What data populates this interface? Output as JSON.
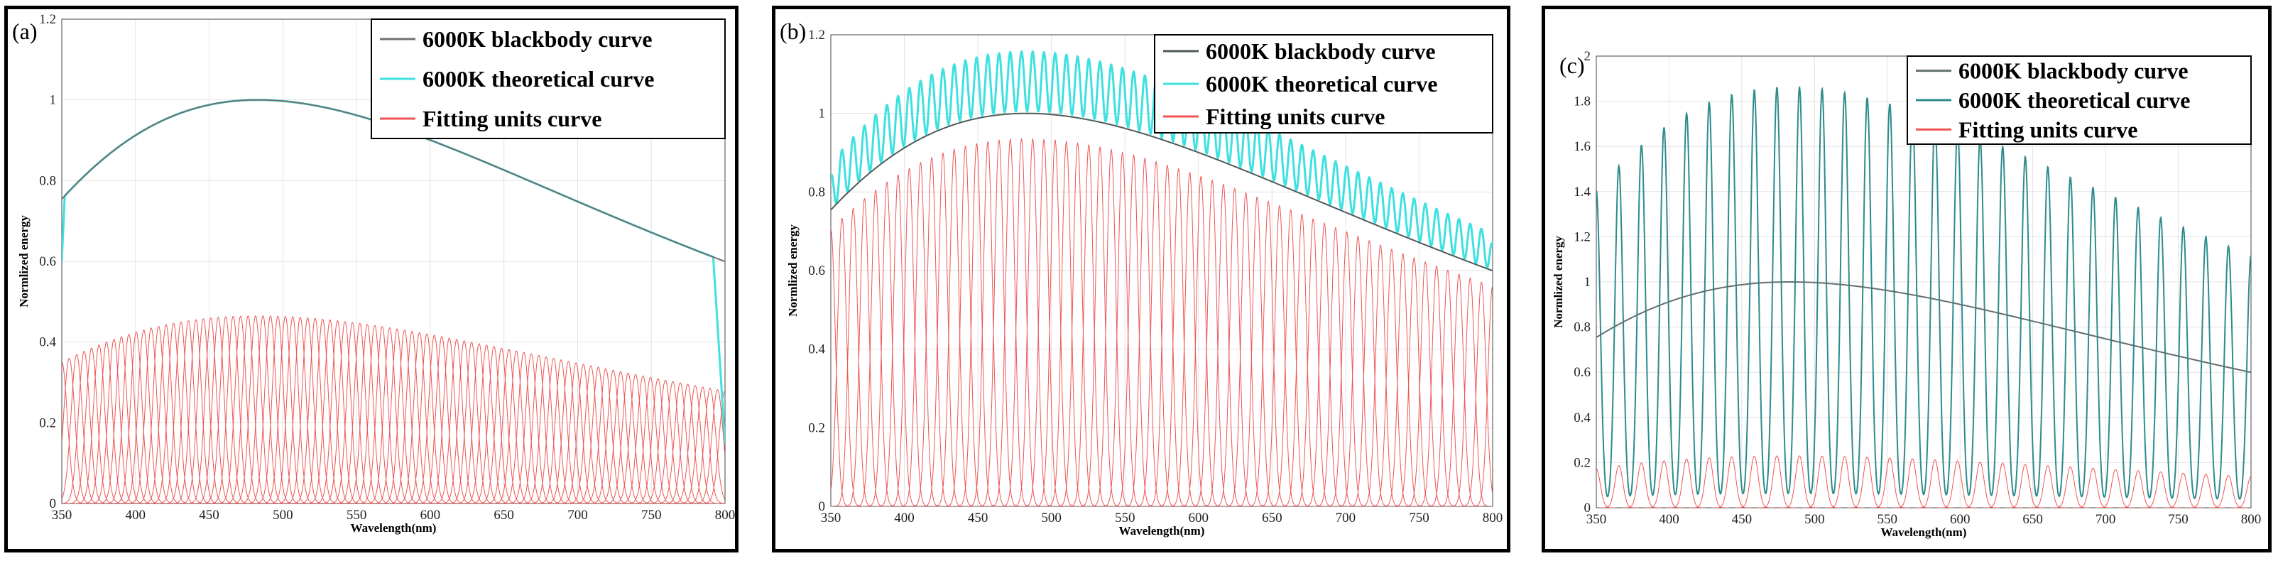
{
  "chart_data": [
    {
      "type": "line",
      "panel_label": "(a)",
      "xlabel": "Wavelength(nm)",
      "ylabel": "Normlized energy",
      "xlim": [
        350,
        800
      ],
      "ylim": [
        0,
        1.2
      ],
      "xticks": [
        "350",
        "400",
        "450",
        "500",
        "550",
        "600",
        "650",
        "700",
        "750",
        "800"
      ],
      "yticks": [
        "0",
        "0.2",
        "0.4",
        "0.6",
        "0.8",
        "1",
        "1.2"
      ],
      "grid": true,
      "legend_position": "top-right",
      "units": {
        "count": 90,
        "start": 350,
        "end": 800,
        "fwhm": 9,
        "amplitude_scale": 0.465
      },
      "theoretical_rise_start": 0.6,
      "theoretical_fall_end": 0.15,
      "series": [
        {
          "name": "6000K blackbody curve",
          "color": "#707070",
          "kind": "blackbody"
        },
        {
          "name": "6000K theoretical curve",
          "color": "#3ee0e0",
          "kind": "theoretical"
        },
        {
          "name": "Fitting units curve",
          "color": "#ef5454",
          "kind": "units"
        }
      ]
    },
    {
      "type": "line",
      "panel_label": "(b)",
      "xlabel": "Wavelength(nm)",
      "ylabel": "Normlized energy",
      "xlim": [
        350,
        800
      ],
      "ylim": [
        0,
        1.2
      ],
      "xticks": [
        "350",
        "400",
        "450",
        "500",
        "550",
        "600",
        "650",
        "700",
        "750",
        "800"
      ],
      "yticks": [
        "0",
        "0.2",
        "0.4",
        "0.6",
        "0.8",
        "1",
        "1.2"
      ],
      "grid": true,
      "legend_position": "top-right",
      "units": {
        "count": 60,
        "start": 350,
        "end": 800,
        "fwhm": 7.4,
        "amplitude_scale": 0.935
      },
      "series": [
        {
          "name": "6000K blackbody curve",
          "color": "#505a5a",
          "kind": "blackbody"
        },
        {
          "name": "6000K theoretical curve",
          "color": "#3ee0e0",
          "kind": "theoretical"
        },
        {
          "name": "Fitting units curve",
          "color": "#ef5454",
          "kind": "units"
        }
      ]
    },
    {
      "type": "line",
      "panel_label": "(c)",
      "xlabel": "Wavelength(nm)",
      "ylabel": "Normlized energy",
      "xlim": [
        350,
        800
      ],
      "ylim": [
        0,
        2
      ],
      "xticks": [
        "350",
        "400",
        "450",
        "500",
        "550",
        "600",
        "650",
        "700",
        "750",
        "800"
      ],
      "yticks": [
        "0",
        "0.2",
        "0.4",
        "0.6",
        "0.8",
        "1",
        "1.2",
        "1.4",
        "1.6",
        "1.8",
        "2"
      ],
      "grid": true,
      "legend_position": "top-right",
      "units": {
        "count": 30,
        "start": 350,
        "end": 800,
        "fwhm": 6.4,
        "amplitude_scale": 0.23
      },
      "series": [
        {
          "name": "6000K blackbody curve",
          "color": "#5f7070",
          "kind": "blackbody"
        },
        {
          "name": "6000K theoretical curve",
          "color": "#2e8c8c",
          "kind": "theoretical"
        },
        {
          "name": "Fitting units curve",
          "color": "#ef5454",
          "kind": "units"
        }
      ]
    }
  ]
}
